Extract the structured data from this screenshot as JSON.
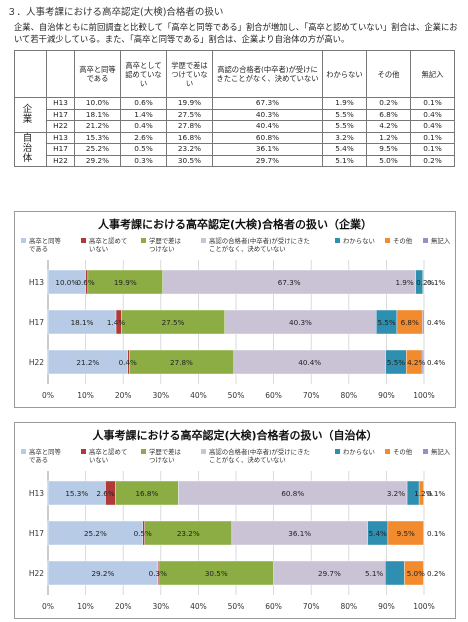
{
  "section_heading": "３．人事考課における高卒認定(大検)合格者の扱い",
  "intro": "企業、自治体ともに前回調査と比較して「高卒と同等である」割合が増加し、「高卒と認めていない」割合は、企業において若干減少している。また、「高卒と同等である」割合は、企業より自治体の方が高い。",
  "table": {
    "headers": [
      "高卒と同等である",
      "高卒として認めていない",
      "学歴で差はつけていない",
      "高認の合格者(中卒者)が受けにきたことがなく、決めていない",
      "わからない",
      "その他",
      "無記入"
    ],
    "groups": [
      {
        "label": "企　業",
        "rows": [
          {
            "year": "H13",
            "cells": [
              "10.0%",
              "0.6%",
              "19.9%",
              "67.3%",
              "1.9%",
              "0.2%",
              "0.1%"
            ]
          },
          {
            "year": "H17",
            "cells": [
              "18.1%",
              "1.4%",
              "27.5%",
              "40.3%",
              "5.5%",
              "6.8%",
              "0.4%"
            ]
          },
          {
            "year": "H22",
            "cells": [
              "21.2%",
              "0.4%",
              "27.8%",
              "40.4%",
              "5.5%",
              "4.2%",
              "0.4%"
            ]
          }
        ]
      },
      {
        "label": "自治体",
        "rows": [
          {
            "year": "H13",
            "cells": [
              "15.3%",
              "2.6%",
              "16.8%",
              "60.8%",
              "3.2%",
              "1.2%",
              "0.1%"
            ]
          },
          {
            "year": "H17",
            "cells": [
              "25.2%",
              "0.5%",
              "23.2%",
              "36.1%",
              "5.4%",
              "9.5%",
              "0.1%"
            ]
          },
          {
            "year": "H22",
            "cells": [
              "29.2%",
              "0.3%",
              "30.5%",
              "29.7%",
              "5.1%",
              "5.0%",
              "0.2%"
            ]
          }
        ]
      }
    ]
  },
  "chart_data": [
    {
      "type": "bar",
      "orientation": "horizontal",
      "stacked": true,
      "title": "人事考課における高卒認定(大検)合格者の扱い（企業）",
      "categories": [
        "H13",
        "H17",
        "H22"
      ],
      "series": [
        {
          "name": "高卒と同等である",
          "values": [
            10.0,
            18.1,
            21.2
          ],
          "color": "#b7cbe6"
        },
        {
          "name": "高卒と認めていない",
          "values": [
            0.6,
            1.4,
            0.4
          ],
          "color": "#b2393a"
        },
        {
          "name": "学歴で差はつけない",
          "values": [
            19.9,
            27.5,
            27.8
          ],
          "color": "#8cad44"
        },
        {
          "name": "高認の合格者(中卒者)が受けにきたことがなく、決めていない",
          "values": [
            67.3,
            40.3,
            40.4
          ],
          "color": "#c9c3d5"
        },
        {
          "name": "わからない",
          "values": [
            1.9,
            5.5,
            5.5
          ],
          "color": "#2e8fb0"
        },
        {
          "name": "その他",
          "values": [
            0.2,
            6.8,
            4.2
          ],
          "color": "#f28a2e"
        },
        {
          "name": "無記入",
          "values": [
            0.1,
            0.4,
            0.4
          ],
          "color": "#8f93c7"
        }
      ],
      "data_labels": [
        [
          "10.0%",
          "0.6%",
          "19.9%",
          "67.3%",
          "1.9%",
          "0.2%",
          "0.1%"
        ],
        [
          "18.1%",
          "1.4%",
          "27.5%",
          "40.3%",
          "5.5%",
          "6.8%",
          "0.4%"
        ],
        [
          "21.2%",
          "0.4%",
          "27.8%",
          "40.4%",
          "5.5%",
          "4.2%",
          "0.4%"
        ]
      ],
      "xlim": [
        0,
        100
      ],
      "xticks": [
        "0%",
        "10%",
        "20%",
        "30%",
        "40%",
        "50%",
        "60%",
        "70%",
        "80%",
        "90%",
        "100%"
      ],
      "grid": true,
      "legend": "top"
    },
    {
      "type": "bar",
      "orientation": "horizontal",
      "stacked": true,
      "title": "人事考課における高卒認定(大検)合格者の扱い（自治体）",
      "categories": [
        "H13",
        "H17",
        "H22"
      ],
      "series": [
        {
          "name": "高卒と同等である",
          "values": [
            15.3,
            25.2,
            29.2
          ],
          "color": "#b7cbe6"
        },
        {
          "name": "高卒と認めていない",
          "values": [
            2.6,
            0.5,
            0.3
          ],
          "color": "#b2393a"
        },
        {
          "name": "学歴で差はつけない",
          "values": [
            16.8,
            23.2,
            30.5
          ],
          "color": "#8cad44"
        },
        {
          "name": "高認の合格者(中卒者)が受けにきたことがなく、決めていない",
          "values": [
            60.8,
            36.1,
            29.7
          ],
          "color": "#c9c3d5"
        },
        {
          "name": "わからない",
          "values": [
            3.2,
            5.4,
            5.1
          ],
          "color": "#2e8fb0"
        },
        {
          "name": "その他",
          "values": [
            1.2,
            9.5,
            5.0
          ],
          "color": "#f28a2e"
        },
        {
          "name": "無記入",
          "values": [
            0.1,
            0.1,
            0.2
          ],
          "color": "#8f93c7"
        }
      ],
      "data_labels": [
        [
          "15.3%",
          "2.6%",
          "16.8%",
          "60.8%",
          "3.2%",
          "1.2%",
          "0.1%"
        ],
        [
          "25.2%",
          "0.5%",
          "23.2%",
          "36.1%",
          "5.4%",
          "9.5%",
          "0.1%"
        ],
        [
          "29.2%",
          "0.3%",
          "30.5%",
          "29.7%",
          "5.1%",
          "5.0%",
          "0.2%"
        ]
      ],
      "xlim": [
        0,
        100
      ],
      "xticks": [
        "0%",
        "10%",
        "20%",
        "30%",
        "40%",
        "50%",
        "60%",
        "70%",
        "80%",
        "90%",
        "100%"
      ],
      "grid": true,
      "legend": "top"
    }
  ]
}
